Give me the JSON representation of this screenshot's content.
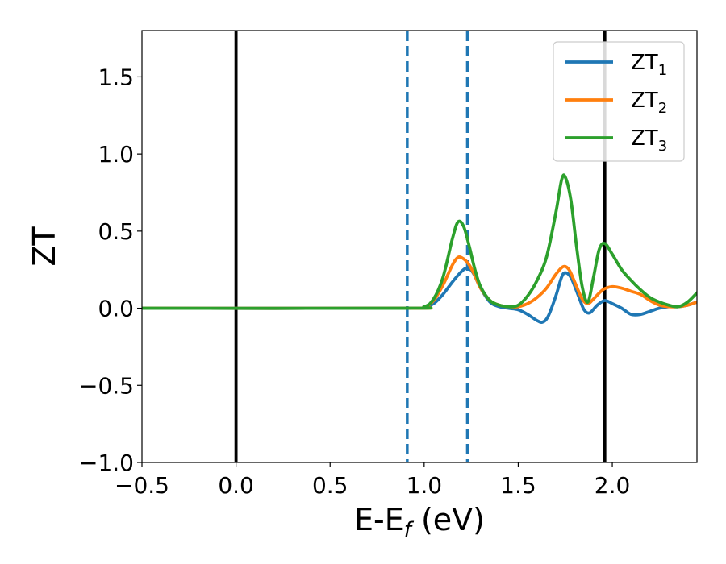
{
  "chart_data": {
    "type": "line",
    "xlabel_main": "E-E",
    "xlabel_sub": "f",
    "xlabel_unit": " (eV)",
    "ylabel": "ZT",
    "xlim": [
      -0.5,
      2.45
    ],
    "ylim": [
      -1.0,
      1.8
    ],
    "x_ticks": [
      -0.5,
      0.0,
      0.5,
      1.0,
      1.5,
      2.0
    ],
    "x_tick_labels": [
      "−0.5",
      "0.0",
      "0.5",
      "1.0",
      "1.5",
      "2.0"
    ],
    "y_ticks": [
      -1.0,
      -0.5,
      0.0,
      0.5,
      1.0,
      1.5
    ],
    "y_tick_labels": [
      "−1.0",
      "−0.5",
      "0.0",
      "0.5",
      "1.0",
      "1.5"
    ],
    "grid": false,
    "legend_position": "top-right",
    "vertical_lines": [
      {
        "x": 0.0,
        "style": "solid",
        "color": "#000000"
      },
      {
        "x": 1.96,
        "style": "solid",
        "color": "#000000"
      },
      {
        "x": 0.91,
        "style": "dashed",
        "color": "#1f77b4"
      },
      {
        "x": 1.23,
        "style": "dashed",
        "color": "#1f77b4"
      }
    ],
    "series": [
      {
        "name_main": "ZT",
        "name_sub": "1",
        "color": "#1f77b4",
        "points": [
          [
            -0.5,
            0.0
          ],
          [
            0.9,
            0.0
          ],
          [
            1.0,
            0.01
          ],
          [
            1.05,
            0.03
          ],
          [
            1.1,
            0.09
          ],
          [
            1.15,
            0.17
          ],
          [
            1.2,
            0.24
          ],
          [
            1.23,
            0.26
          ],
          [
            1.26,
            0.23
          ],
          [
            1.3,
            0.13
          ],
          [
            1.35,
            0.04
          ],
          [
            1.4,
            0.01
          ],
          [
            1.45,
            0.0
          ],
          [
            1.5,
            -0.01
          ],
          [
            1.55,
            -0.04
          ],
          [
            1.6,
            -0.08
          ],
          [
            1.63,
            -0.09
          ],
          [
            1.66,
            -0.05
          ],
          [
            1.7,
            0.08
          ],
          [
            1.73,
            0.2
          ],
          [
            1.75,
            0.23
          ],
          [
            1.78,
            0.2
          ],
          [
            1.82,
            0.08
          ],
          [
            1.85,
            -0.01
          ],
          [
            1.88,
            -0.03
          ],
          [
            1.92,
            0.02
          ],
          [
            1.96,
            0.05
          ],
          [
            2.0,
            0.03
          ],
          [
            2.05,
            0.0
          ],
          [
            2.1,
            -0.04
          ],
          [
            2.15,
            -0.04
          ],
          [
            2.2,
            -0.02
          ],
          [
            2.25,
            0.0
          ],
          [
            2.3,
            0.01
          ],
          [
            2.35,
            0.01
          ],
          [
            2.4,
            0.02
          ],
          [
            2.45,
            0.04
          ]
        ]
      },
      {
        "name_main": "ZT",
        "name_sub": "2",
        "color": "#ff7f0e",
        "points": [
          [
            -0.5,
            0.0
          ],
          [
            0.9,
            0.0
          ],
          [
            1.0,
            0.01
          ],
          [
            1.05,
            0.05
          ],
          [
            1.1,
            0.15
          ],
          [
            1.15,
            0.28
          ],
          [
            1.18,
            0.33
          ],
          [
            1.21,
            0.32
          ],
          [
            1.24,
            0.28
          ],
          [
            1.27,
            0.21
          ],
          [
            1.3,
            0.13
          ],
          [
            1.35,
            0.05
          ],
          [
            1.4,
            0.02
          ],
          [
            1.45,
            0.01
          ],
          [
            1.5,
            0.01
          ],
          [
            1.55,
            0.03
          ],
          [
            1.6,
            0.07
          ],
          [
            1.65,
            0.13
          ],
          [
            1.7,
            0.22
          ],
          [
            1.74,
            0.27
          ],
          [
            1.77,
            0.25
          ],
          [
            1.8,
            0.17
          ],
          [
            1.84,
            0.06
          ],
          [
            1.87,
            0.03
          ],
          [
            1.9,
            0.06
          ],
          [
            1.95,
            0.12
          ],
          [
            2.0,
            0.14
          ],
          [
            2.05,
            0.13
          ],
          [
            2.1,
            0.11
          ],
          [
            2.15,
            0.09
          ],
          [
            2.2,
            0.05
          ],
          [
            2.25,
            0.02
          ],
          [
            2.3,
            0.01
          ],
          [
            2.35,
            0.01
          ],
          [
            2.4,
            0.02
          ],
          [
            2.45,
            0.04
          ]
        ]
      },
      {
        "name_main": "ZT",
        "name_sub": "3",
        "color": "#2ca02c",
        "points": [
          [
            -0.5,
            0.0
          ],
          [
            0.9,
            0.0
          ],
          [
            1.0,
            0.01
          ],
          [
            1.05,
            0.06
          ],
          [
            1.1,
            0.2
          ],
          [
            1.15,
            0.45
          ],
          [
            1.18,
            0.56
          ],
          [
            1.21,
            0.53
          ],
          [
            1.24,
            0.4
          ],
          [
            1.27,
            0.25
          ],
          [
            1.3,
            0.14
          ],
          [
            1.35,
            0.05
          ],
          [
            1.4,
            0.02
          ],
          [
            1.45,
            0.01
          ],
          [
            1.5,
            0.02
          ],
          [
            1.55,
            0.08
          ],
          [
            1.6,
            0.18
          ],
          [
            1.65,
            0.33
          ],
          [
            1.7,
            0.62
          ],
          [
            1.73,
            0.83
          ],
          [
            1.75,
            0.85
          ],
          [
            1.78,
            0.7
          ],
          [
            1.81,
            0.4
          ],
          [
            1.84,
            0.14
          ],
          [
            1.87,
            0.04
          ],
          [
            1.9,
            0.2
          ],
          [
            1.93,
            0.38
          ],
          [
            1.96,
            0.42
          ],
          [
            2.0,
            0.35
          ],
          [
            2.05,
            0.25
          ],
          [
            2.1,
            0.18
          ],
          [
            2.15,
            0.12
          ],
          [
            2.2,
            0.07
          ],
          [
            2.25,
            0.04
          ],
          [
            2.3,
            0.02
          ],
          [
            2.35,
            0.01
          ],
          [
            2.4,
            0.04
          ],
          [
            2.45,
            0.1
          ]
        ]
      }
    ]
  }
}
